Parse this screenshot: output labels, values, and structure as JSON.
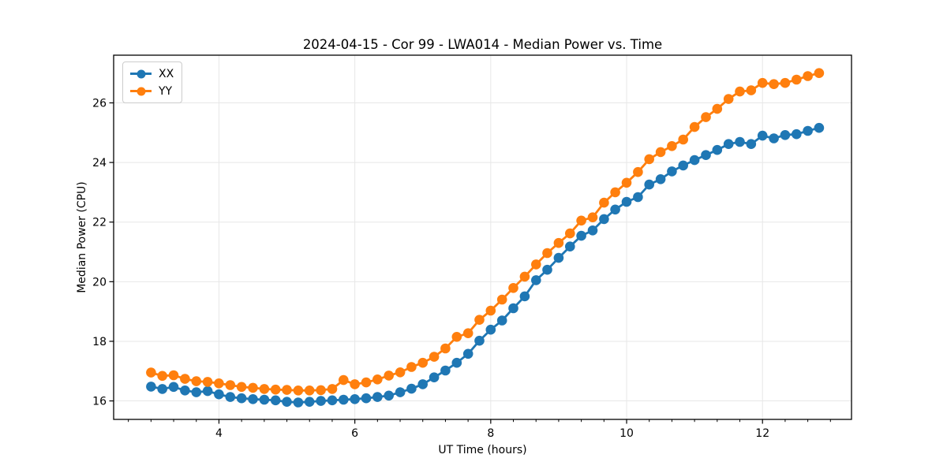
{
  "chart_data": {
    "type": "line",
    "title": "2024-04-15 - Cor 99 - LWA014 - Median Power vs. Time",
    "xlabel": "UT Time (hours)",
    "ylabel": "Median Power (CPU)",
    "xlim": [
      2.45,
      13.31
    ],
    "ylim": [
      15.38,
      27.6
    ],
    "xticks": [
      4,
      6,
      8,
      10,
      12
    ],
    "yticks": [
      16,
      18,
      20,
      22,
      24,
      26
    ],
    "x_minor_step": 0.33333,
    "grid": true,
    "grid_color": "#e7e7e7",
    "legend_position": "upper-left",
    "background": "#ffffff",
    "x": [
      3.0,
      3.167,
      3.333,
      3.5,
      3.667,
      3.833,
      4.0,
      4.167,
      4.333,
      4.5,
      4.667,
      4.833,
      5.0,
      5.167,
      5.333,
      5.5,
      5.667,
      5.833,
      6.0,
      6.167,
      6.333,
      6.5,
      6.667,
      6.833,
      7.0,
      7.167,
      7.333,
      7.5,
      7.667,
      7.833,
      8.0,
      8.167,
      8.333,
      8.5,
      8.667,
      8.833,
      9.0,
      9.167,
      9.333,
      9.5,
      9.667,
      9.833,
      10.0,
      10.167,
      10.333,
      10.5,
      10.667,
      10.833,
      11.0,
      11.167,
      11.333,
      11.5,
      11.667,
      11.833,
      12.0,
      12.167,
      12.333,
      12.5,
      12.667,
      12.833
    ],
    "series": [
      {
        "name": "XX",
        "color": "#1f77b4",
        "values": [
          16.48,
          16.4,
          16.47,
          16.35,
          16.29,
          16.33,
          16.22,
          16.13,
          16.09,
          16.06,
          16.04,
          16.02,
          15.97,
          15.95,
          15.97,
          16.0,
          16.02,
          16.04,
          16.06,
          16.09,
          16.13,
          16.18,
          16.29,
          16.41,
          16.56,
          16.79,
          17.02,
          17.28,
          17.58,
          18.02,
          18.39,
          18.7,
          19.11,
          19.51,
          20.05,
          20.4,
          20.8,
          21.18,
          21.54,
          21.72,
          22.1,
          22.42,
          22.68,
          22.84,
          23.26,
          23.44,
          23.7,
          23.9,
          24.08,
          24.25,
          24.42,
          24.62,
          24.69,
          24.62,
          24.9,
          24.81,
          24.92,
          24.95,
          25.06,
          25.16
        ]
      },
      {
        "name": "YY",
        "color": "#ff7f0e",
        "values": [
          16.95,
          16.84,
          16.86,
          16.74,
          16.66,
          16.64,
          16.59,
          16.53,
          16.47,
          16.44,
          16.4,
          16.38,
          16.37,
          16.35,
          16.35,
          16.36,
          16.4,
          16.7,
          16.56,
          16.62,
          16.72,
          16.85,
          16.96,
          17.14,
          17.28,
          17.48,
          17.76,
          18.15,
          18.27,
          18.72,
          19.03,
          19.4,
          19.79,
          20.17,
          20.58,
          20.96,
          21.3,
          21.62,
          22.05,
          22.16,
          22.65,
          23.0,
          23.32,
          23.68,
          24.11,
          24.35,
          24.55,
          24.77,
          25.19,
          25.52,
          25.8,
          26.13,
          26.38,
          26.42,
          26.67,
          26.63,
          26.67,
          26.78,
          26.9,
          27.0
        ]
      }
    ]
  }
}
